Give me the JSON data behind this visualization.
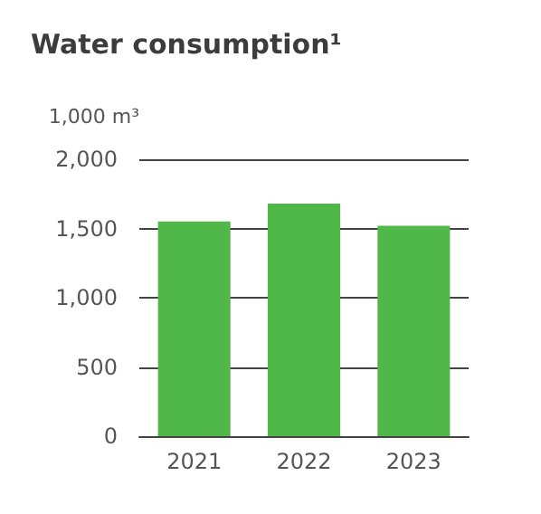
{
  "chart_data": {
    "type": "bar",
    "title": "Water consumption¹",
    "ylabel": "1,000 m³",
    "categories": [
      "2021",
      "2022",
      "2023"
    ],
    "values": [
      1550,
      1680,
      1520
    ],
    "color": "#50b848",
    "ylim": [
      0,
      2000
    ],
    "yticks": [
      0,
      500,
      {
        "value": 1000,
        "label": "1,000"
      },
      {
        "value": 1500,
        "label": "1,500"
      },
      {
        "value": 2000,
        "label": "2,000"
      }
    ],
    "grid": "y"
  }
}
